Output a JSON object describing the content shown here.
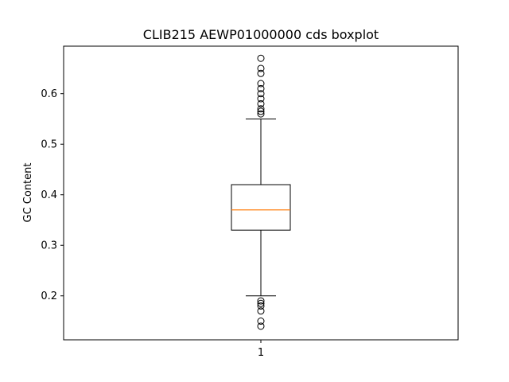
{
  "chart_data": {
    "type": "boxplot",
    "title": "CLIB215 AEWP01000000 cds boxplot",
    "xlabel": "",
    "ylabel": "GC Content",
    "ylim": [
      0.113,
      0.694
    ],
    "yticks": [
      0.2,
      0.3,
      0.4,
      0.5,
      0.6
    ],
    "ytick_labels": [
      "0.2",
      "0.3",
      "0.4",
      "0.5",
      "0.6"
    ],
    "xticks": [
      1
    ],
    "xtick_labels": [
      "1"
    ],
    "grid": false,
    "boxes": [
      {
        "x": 1,
        "whisker_low": 0.2,
        "q1": 0.33,
        "median": 0.37,
        "q3": 0.42,
        "whisker_high": 0.55,
        "outliers_high": [
          0.56,
          0.565,
          0.57,
          0.58,
          0.59,
          0.6,
          0.61,
          0.62,
          0.64,
          0.65,
          0.67
        ],
        "outliers_low": [
          0.19,
          0.185,
          0.18,
          0.17,
          0.15,
          0.14
        ]
      }
    ],
    "colors": {
      "box": "#000000",
      "median": "#ff7f0e",
      "background": "#ffffff"
    }
  }
}
